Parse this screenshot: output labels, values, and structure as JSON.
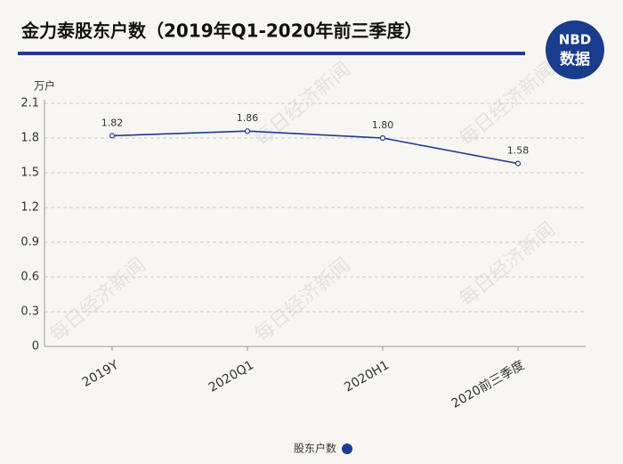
{
  "chart_data": {
    "type": "line",
    "title": "金力泰股东户数（2019年Q1-2020年前三季度）",
    "y_unit": "万户",
    "categories": [
      "2019Y",
      "2020Q1",
      "2020H1",
      "2020前三季度"
    ],
    "series": [
      {
        "name": "股东户数",
        "color": "#1f3a93",
        "values": [
          1.82,
          1.86,
          1.8,
          1.58
        ],
        "value_labels": [
          "1.82",
          "1.86",
          "1.80",
          "1.58"
        ]
      }
    ],
    "ylim": [
      0,
      2.1
    ],
    "yticks": [
      0,
      0.3,
      0.6,
      0.9,
      1.2,
      1.5,
      1.8,
      2.1
    ],
    "grid": true,
    "legend": "bottom"
  },
  "logo": {
    "top": "NBD",
    "bottom": "数据"
  },
  "watermark": "每日经济新闻"
}
